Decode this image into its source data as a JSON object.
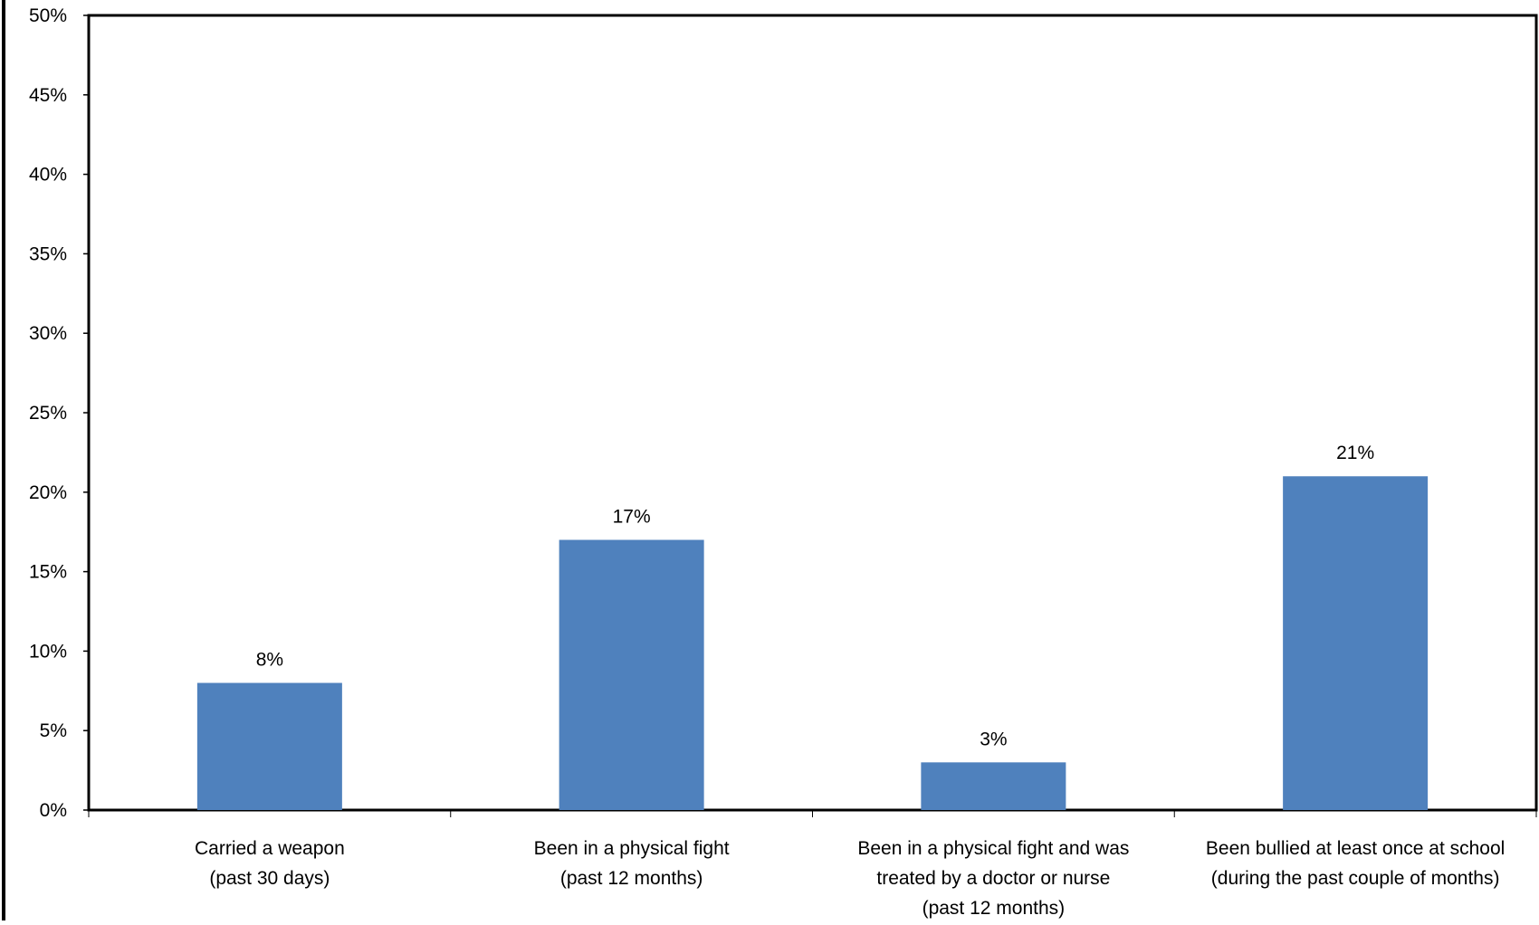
{
  "chart_data": {
    "type": "bar",
    "categories": [
      [
        "Carried a weapon",
        "(past 30 days)"
      ],
      [
        "Been in a physical fight",
        "(past 12 months)"
      ],
      [
        "Been in a physical fight and was",
        "treated by a doctor or nurse",
        "(past 12 months)"
      ],
      [
        "Been bullied at least once at school",
        "(during the past couple of months)"
      ]
    ],
    "values": [
      8,
      17,
      3,
      21
    ],
    "data_labels": [
      "8%",
      "17%",
      "3%",
      "21%"
    ],
    "ylim": [
      0,
      50
    ],
    "y_ticks": [
      0,
      5,
      10,
      15,
      20,
      25,
      30,
      35,
      40,
      45,
      50
    ],
    "y_tick_labels": [
      "0%",
      "5%",
      "10%",
      "15%",
      "20%",
      "25%",
      "30%",
      "35%",
      "40%",
      "45%",
      "50%"
    ],
    "title": "",
    "xlabel": "",
    "ylabel": "",
    "grid": false,
    "legend": "none",
    "bar_color": "#4F81BD"
  }
}
